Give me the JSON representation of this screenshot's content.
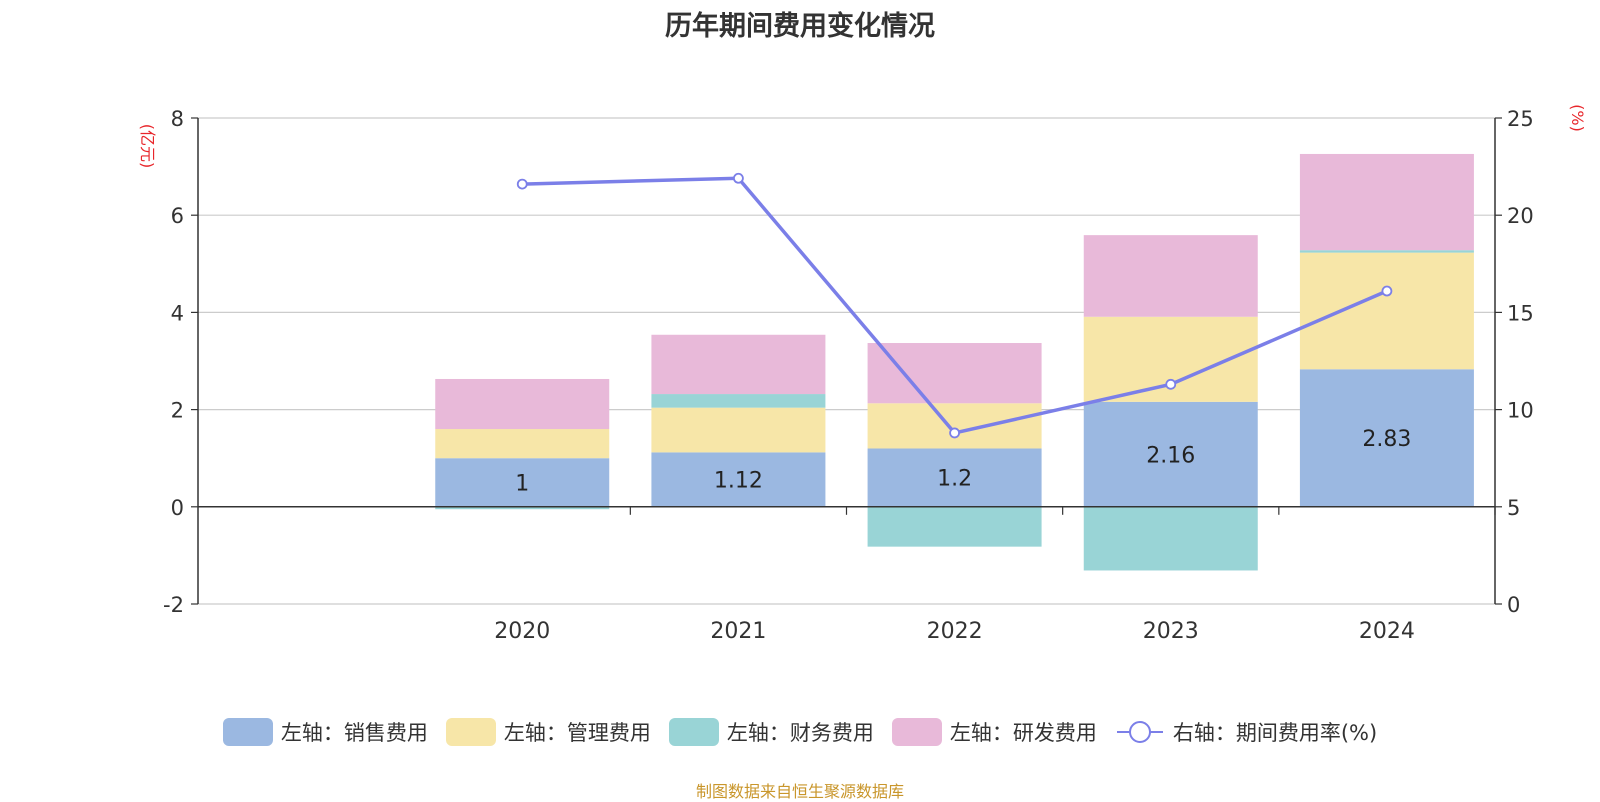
{
  "chart_data": {
    "type": "bar",
    "title": "历年期间费用变化情况",
    "categories": [
      "2020",
      "2021",
      "2022",
      "2023",
      "2024"
    ],
    "left_axis": {
      "unit_label": "(亿元)",
      "ylim": [
        -2,
        8
      ],
      "ticks": [
        -2,
        0,
        2,
        4,
        6,
        8
      ]
    },
    "right_axis": {
      "unit_label": "(%)",
      "ylim": [
        0,
        25
      ],
      "ticks": [
        0,
        5,
        10,
        15,
        20,
        25
      ]
    },
    "series": [
      {
        "name": "左轴：销售费用",
        "axis": "left",
        "type": "bar",
        "color": "#9bb8e1",
        "values": [
          1.0,
          1.12,
          1.2,
          2.16,
          2.83
        ],
        "show_labels": true
      },
      {
        "name": "左轴：管理费用",
        "axis": "left",
        "type": "bar",
        "color": "#f7e6a8",
        "values": [
          0.6,
          0.92,
          0.93,
          1.75,
          2.4
        ],
        "show_labels": false
      },
      {
        "name": "左轴：财务费用",
        "axis": "left",
        "type": "bar",
        "color": "#99d4d6",
        "values": [
          -0.05,
          0.28,
          -0.82,
          -1.31,
          0.05
        ],
        "show_labels": false
      },
      {
        "name": "左轴：研发费用",
        "axis": "left",
        "type": "bar",
        "color": "#e8b9d9",
        "values": [
          1.03,
          1.22,
          1.24,
          1.68,
          1.98
        ],
        "show_labels": false
      },
      {
        "name": "右轴：期间费用率(%)",
        "axis": "right",
        "type": "line",
        "color": "#7b7fe8",
        "values": [
          21.6,
          21.9,
          8.8,
          11.3,
          16.1
        ]
      }
    ],
    "bar_labels": [
      "1",
      "1.12",
      "1.2",
      "2.16",
      "2.83"
    ],
    "grid": true,
    "legend_position": "bottom"
  },
  "source_note": "制图数据来自恒生聚源数据库"
}
